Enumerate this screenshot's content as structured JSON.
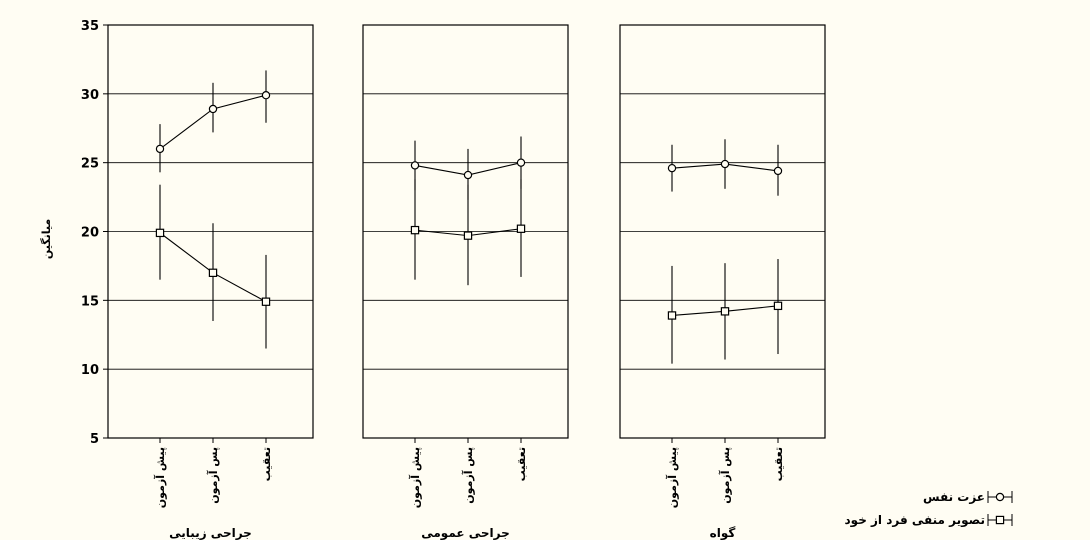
{
  "chart_data": {
    "type": "line",
    "ylabel": "میانگین",
    "ylim": [
      5,
      35
    ],
    "yticks": [
      5,
      10,
      15,
      20,
      25,
      30,
      35
    ],
    "grid": "horizontal",
    "legend_position": "bottom-right",
    "categories": [
      "پیش آزمون",
      "پس آزمون",
      "تعقیب"
    ],
    "series_styles": [
      {
        "name": "عزت نفس",
        "marker": "circle",
        "color": "#000000"
      },
      {
        "name": "تصویر منفی فرد از خود",
        "marker": "square",
        "color": "#000000"
      }
    ],
    "panels": [
      {
        "title": "جراحی زیبایی",
        "series": [
          {
            "name": "عزت نفس",
            "values": [
              26.0,
              28.9,
              29.9
            ],
            "err_low": [
              24.3,
              27.2,
              27.9
            ],
            "err_high": [
              27.8,
              30.8,
              31.7
            ]
          },
          {
            "name": "تصویر منفی فرد از خود",
            "values": [
              19.9,
              17.0,
              14.9
            ],
            "err_low": [
              16.5,
              13.5,
              11.5
            ],
            "err_high": [
              23.4,
              20.6,
              18.3
            ]
          }
        ]
      },
      {
        "title": "جراحی عمومی",
        "series": [
          {
            "name": "عزت نفس",
            "values": [
              24.8,
              24.1,
              25.0
            ],
            "err_low": [
              23.0,
              22.3,
              23.1
            ],
            "err_high": [
              26.6,
              26.0,
              26.9
            ]
          },
          {
            "name": "تصویر منفی فرد از خود",
            "values": [
              20.1,
              19.7,
              20.2
            ],
            "err_low": [
              16.5,
              16.1,
              16.7
            ],
            "err_high": [
              23.8,
              23.4,
              23.8
            ]
          }
        ]
      },
      {
        "title": "گواه",
        "series": [
          {
            "name": "عزت نفس",
            "values": [
              24.6,
              24.9,
              24.4
            ],
            "err_low": [
              22.9,
              23.1,
              22.6
            ],
            "err_high": [
              26.3,
              26.7,
              26.3
            ]
          },
          {
            "name": "تصویر منفی فرد از خود",
            "values": [
              13.9,
              14.2,
              14.6
            ],
            "err_low": [
              10.4,
              10.7,
              11.1
            ],
            "err_high": [
              17.5,
              17.7,
              18.0
            ]
          }
        ]
      }
    ]
  }
}
